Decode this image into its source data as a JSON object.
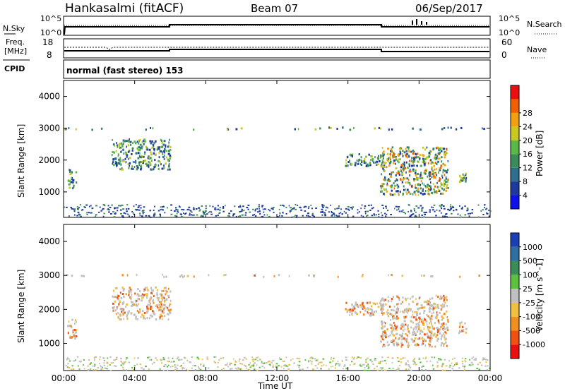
{
  "header": {
    "station": "Hankasalmi (fitACF)",
    "beam": "Beam 07",
    "date": "06/Sep/2017"
  },
  "status_panels": {
    "nsky_label": "N.Sky",
    "nsearch_label": "N.Search",
    "noise_tick_top": "10^5",
    "noise_tick_bottom": "10^0",
    "freq_label_1": "Freq.",
    "freq_label_2": "[MHz]",
    "freq_ticks": [
      "18",
      "8"
    ],
    "nave_label": "Nave",
    "nave_ticks": [
      "60",
      "0"
    ],
    "cpid_label": "CPID",
    "cpid_value": "normal (fast stereo) 153"
  },
  "chart_data": [
    {
      "type": "heatmap",
      "name": "power",
      "ylabel": "Slant Range [km]",
      "xlabel": "",
      "ylim": [
        200,
        4500
      ],
      "xlim": [
        0,
        24
      ],
      "yticks": [
        "1000",
        "2000",
        "3000",
        "4000"
      ],
      "colorbar": {
        "label": "Power [dB]",
        "ticks": [
          "4",
          "8",
          "12",
          "16",
          "20",
          "24",
          "28"
        ],
        "colors": [
          "#1010e8",
          "#1f3a9e",
          "#2f6e8c",
          "#3c8c5a",
          "#5ab848",
          "#c8c820",
          "#f0a010",
          "#f06000",
          "#e81010"
        ]
      },
      "features": [
        {
          "t": [
            0.2,
            0.7
          ],
          "r": [
            1100,
            1700
          ]
        },
        {
          "t": [
            2.7,
            6.0
          ],
          "r": [
            1700,
            2650
          ]
        },
        {
          "t": [
            15.8,
            18.0
          ],
          "r": [
            1800,
            2200
          ]
        },
        {
          "t": [
            17.8,
            21.6
          ],
          "r": [
            900,
            2400
          ]
        },
        {
          "t": [
            22.2,
            22.7
          ],
          "r": [
            1300,
            1650
          ]
        },
        {
          "t": [
            0,
            24
          ],
          "r": [
            200,
            600
          ]
        },
        {
          "t": [
            0,
            24
          ],
          "r": [
            2950,
            3020
          ]
        }
      ]
    },
    {
      "type": "heatmap",
      "name": "velocity",
      "ylabel": "Slant Range [km]",
      "xlabel": "Time UT",
      "ylim": [
        200,
        4500
      ],
      "xlim": [
        0,
        24
      ],
      "xticks": [
        "00:00",
        "04:00",
        "08:00",
        "12:00",
        "16:00",
        "20:00",
        "00:00"
      ],
      "yticks": [
        "1000",
        "2000",
        "3000",
        "4000"
      ],
      "colorbar": {
        "label": "Velocity [m s^-1]",
        "ticks": [
          "1000",
          "500",
          "100",
          "25",
          "-25",
          "-100",
          "-500",
          "-1000"
        ],
        "colors": [
          "#1a3fb4",
          "#2f6ea0",
          "#3c8c5a",
          "#5cc040",
          "#c0c0c0",
          "#f0c040",
          "#f09020",
          "#f05010",
          "#e81010"
        ]
      },
      "features": [
        {
          "t": [
            0.2,
            0.7
          ],
          "r": [
            1100,
            1700
          ]
        },
        {
          "t": [
            2.7,
            6.0
          ],
          "r": [
            1700,
            2650
          ]
        },
        {
          "t": [
            15.8,
            18.0
          ],
          "r": [
            1800,
            2200
          ]
        },
        {
          "t": [
            17.8,
            21.6
          ],
          "r": [
            900,
            2400
          ]
        },
        {
          "t": [
            22.2,
            22.7
          ],
          "r": [
            1300,
            1650
          ]
        },
        {
          "t": [
            0,
            24
          ],
          "r": [
            200,
            600
          ]
        },
        {
          "t": [
            0,
            24
          ],
          "r": [
            2950,
            3020
          ]
        }
      ]
    }
  ]
}
